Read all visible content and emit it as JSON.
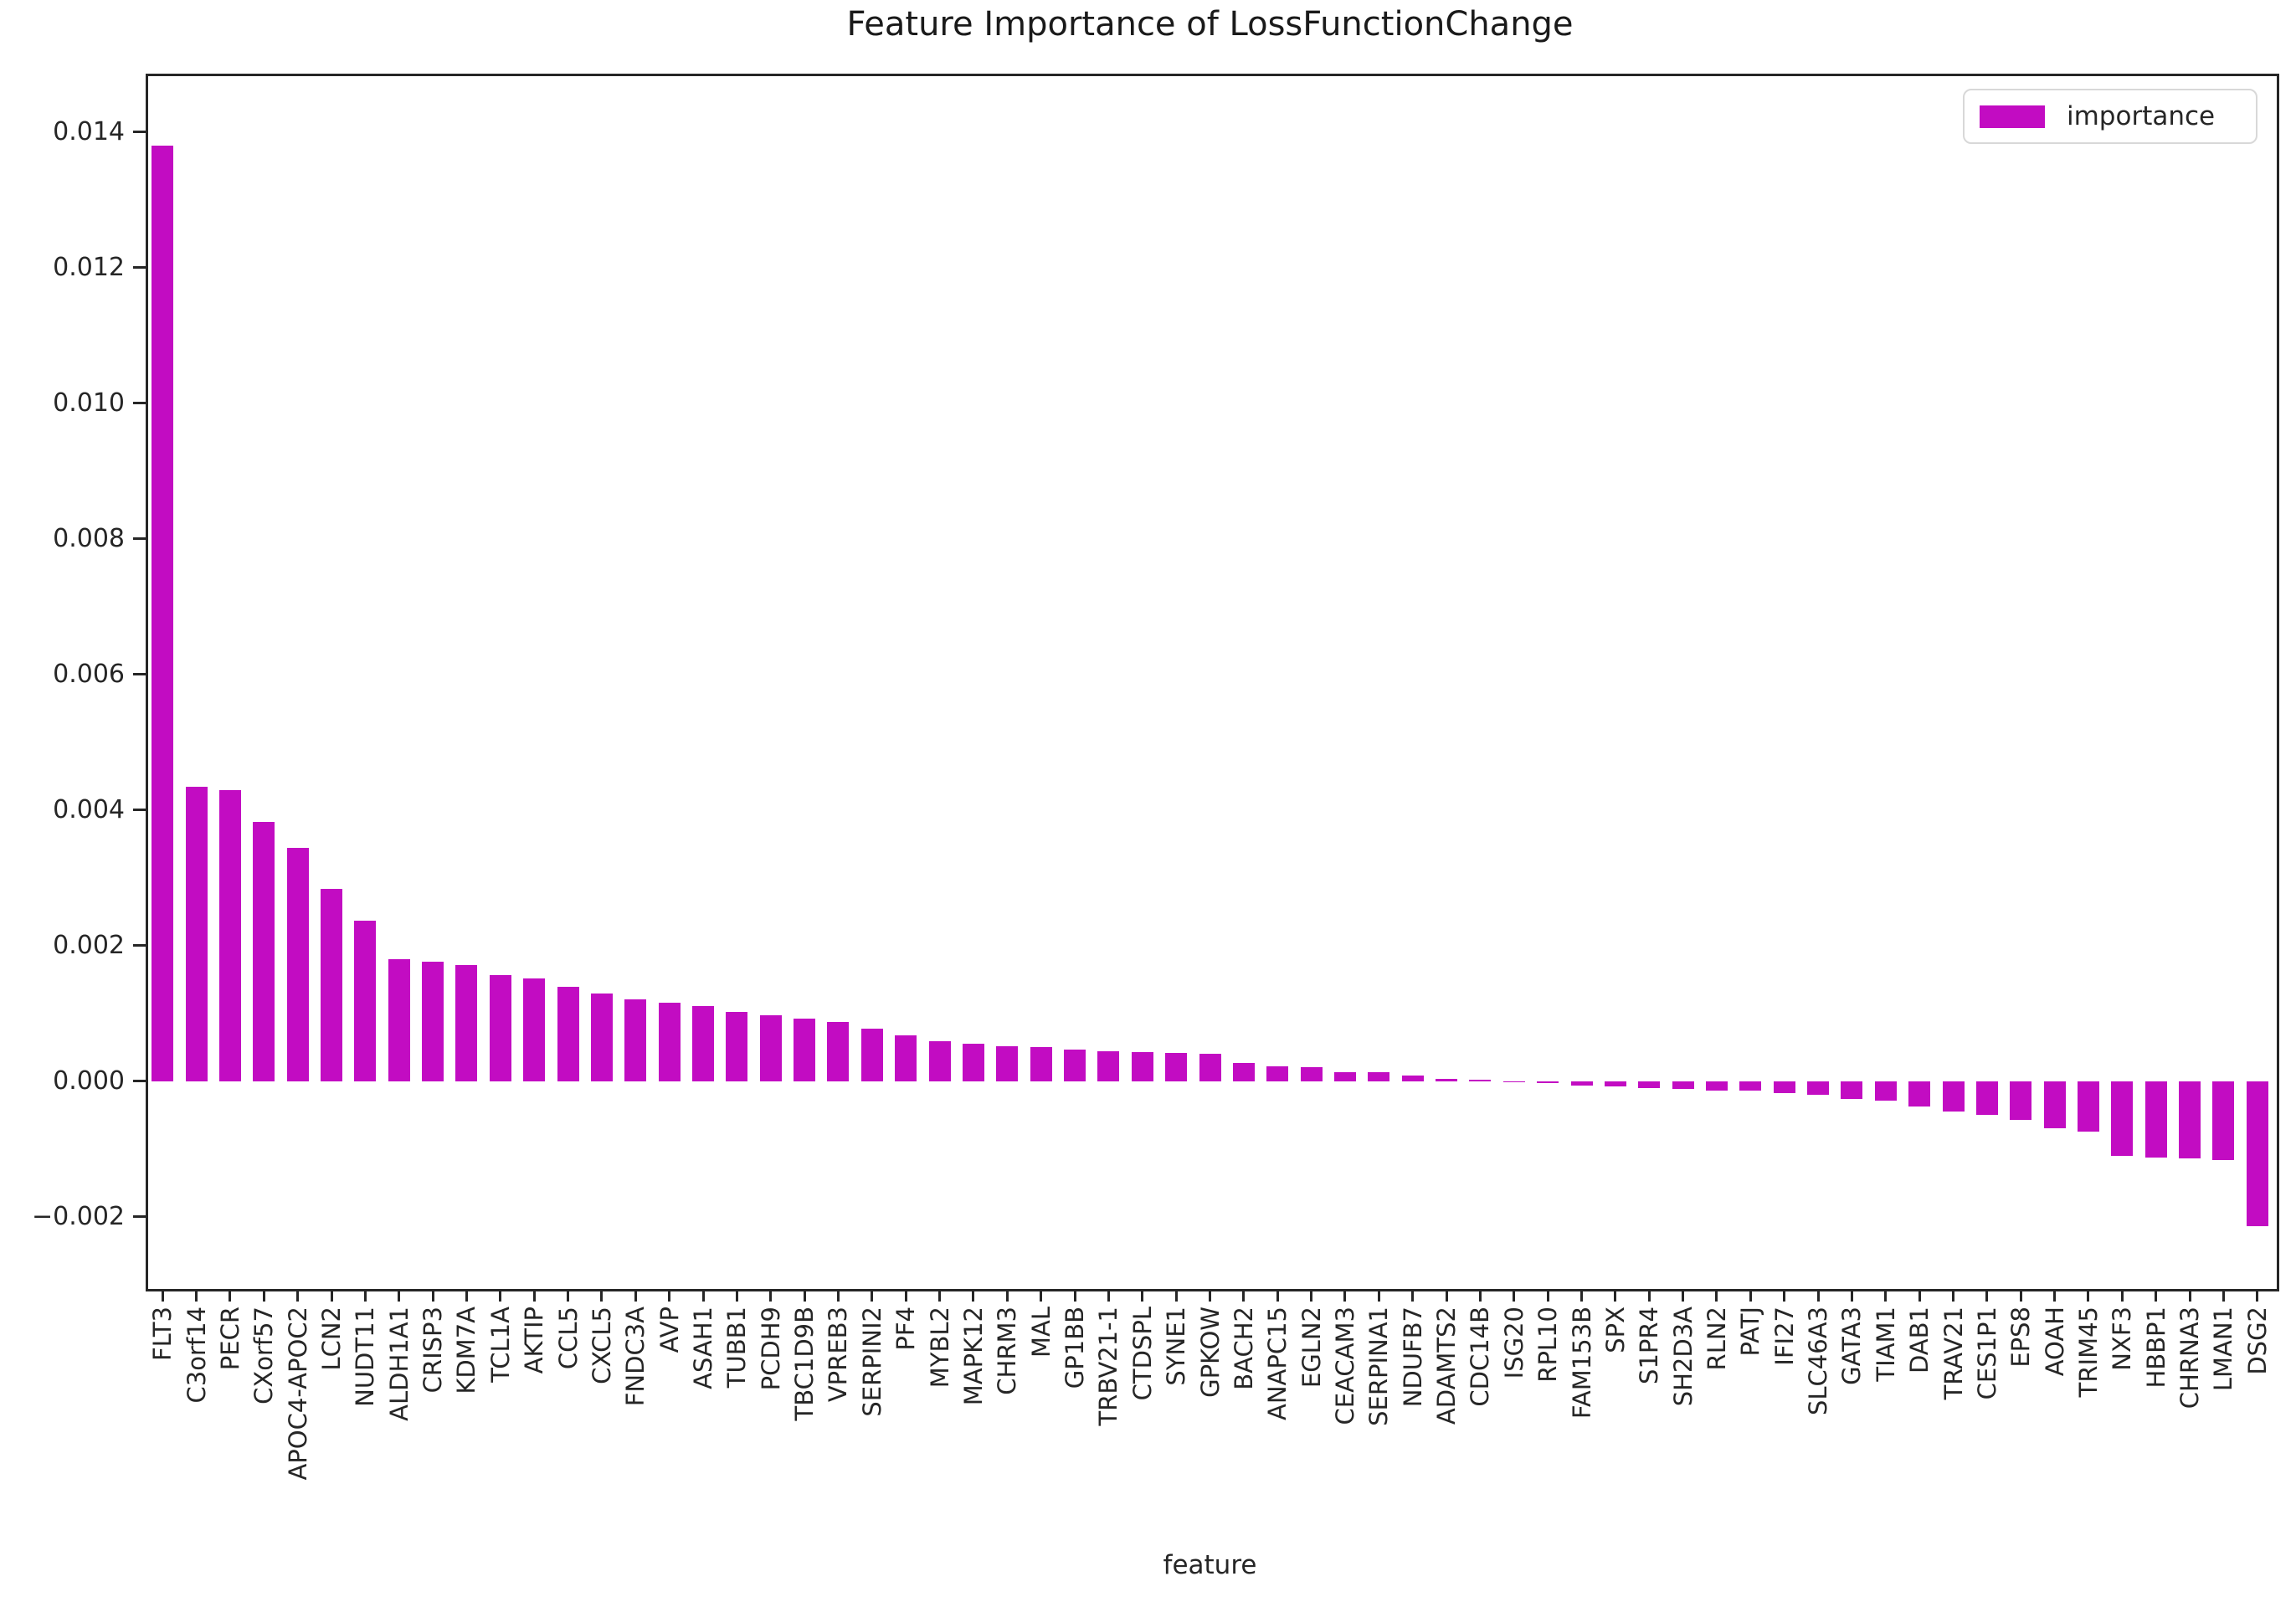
{
  "chart_data": {
    "type": "bar",
    "title": "Feature Importance of LossFunctionChange",
    "xlabel": "feature",
    "ylabel": "",
    "legend": [
      "importance"
    ],
    "legend_position": "upper right",
    "grid": false,
    "bar_color": "#c20cc2",
    "x_tick_rotation": 90,
    "ylim": [
      -0.0030247,
      0.014864
    ],
    "y_ticks": [
      0.014,
      0.012,
      0.01,
      0.008,
      0.006,
      0.004,
      0.002,
      0.0,
      -0.002
    ],
    "y_tick_labels": [
      "0.014",
      "0.012",
      "0.010",
      "0.008",
      "0.006",
      "0.004",
      "0.002",
      "0.000",
      "−0.002"
    ],
    "categories": [
      "FLT3",
      "C3orf14",
      "PECR",
      "CXorf57",
      "APOC4-APOC2",
      "LCN2",
      "NUDT11",
      "ALDH1A1",
      "CRISP3",
      "KDM7A",
      "TCL1A",
      "AKTIP",
      "CCL5",
      "CXCL5",
      "FNDC3A",
      "AVP",
      "ASAH1",
      "TUBB1",
      "PCDH9",
      "TBC1D9B",
      "VPREB3",
      "SERPINI2",
      "PF4",
      "MYBL2",
      "MAPK12",
      "CHRM3",
      "MAL",
      "GP1BB",
      "TRBV21-1",
      "CTDSPL",
      "SYNE1",
      "GPKOW",
      "BACH2",
      "ANAPC15",
      "EGLN2",
      "CEACAM3",
      "SERPINA1",
      "NDUFB7",
      "ADAMTS2",
      "CDC14B",
      "ISG20",
      "RPL10",
      "FAM153B",
      "SPX",
      "S1PR4",
      "SH2D3A",
      "RLN2",
      "PATJ",
      "IFI27",
      "SLC46A3",
      "GATA3",
      "TIAM1",
      "DAB1",
      "TRAV21",
      "CES1P1",
      "EPS8",
      "AOAH",
      "TRIM45",
      "NXF3",
      "HBBP1",
      "CHRNA3",
      "LMAN1",
      "DSG2"
    ],
    "values": [
      0.0138,
      0.00435,
      0.0043,
      0.00383,
      0.00344,
      0.00284,
      0.00237,
      0.0018,
      0.00176,
      0.00171,
      0.00157,
      0.00152,
      0.0014,
      0.0013,
      0.00121,
      0.00116,
      0.00111,
      0.00102,
      0.00097,
      0.00092,
      0.00088,
      0.00078,
      0.00068,
      0.00059,
      0.00055,
      0.00052,
      0.0005,
      0.00047,
      0.00045,
      0.00043,
      0.00042,
      0.00041,
      0.00027,
      0.00022,
      0.00021,
      0.00014,
      0.00013,
      9e-05,
      4e-05,
      2e-05,
      5e-06,
      -2e-05,
      -6e-05,
      -8e-05,
      -0.0001,
      -0.00011,
      -0.00013,
      -0.00014,
      -0.00017,
      -0.0002,
      -0.00026,
      -0.00028,
      -0.00037,
      -0.00044,
      -0.00049,
      -0.00057,
      -0.00069,
      -0.00074,
      -0.0011,
      -0.00112,
      -0.00114,
      -0.00116,
      -0.00213
    ]
  }
}
